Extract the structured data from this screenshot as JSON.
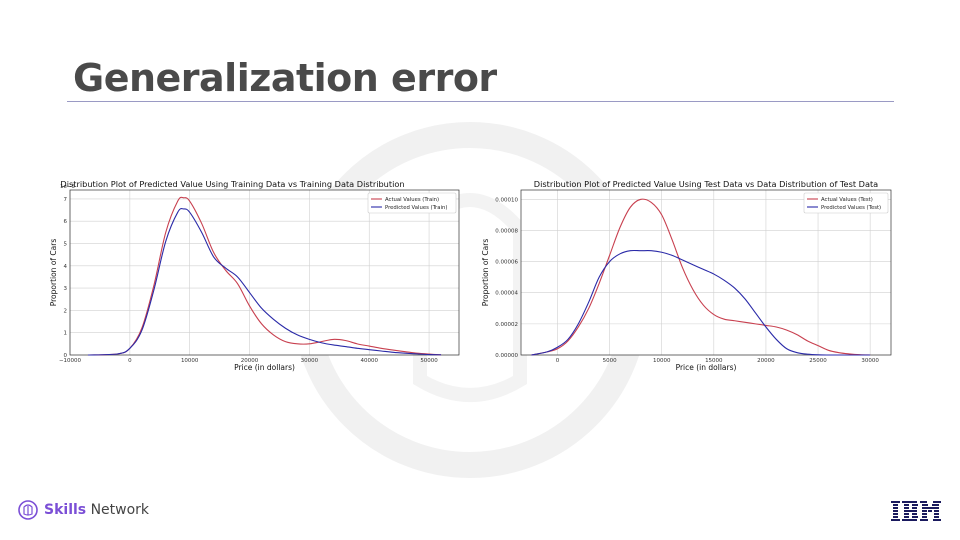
{
  "slide": {
    "title": "Generalization error"
  },
  "brand": {
    "name_strong": "Skills",
    "name_rest": "Network",
    "partner": "IBM"
  },
  "colors": {
    "actual": "#c8404f",
    "predicted": "#2a2aa8",
    "grid": "#d0d0d0",
    "axis": "#333333"
  },
  "chart_data": [
    {
      "type": "line",
      "title": "Distribution Plot of Predicted Value Using Training Data vs Training Data Distribution",
      "xlabel": "Price (in dollars)",
      "ylabel": "Proportion of Cars",
      "y_offset_label": "1e−5",
      "xlim": [
        -10000,
        55000
      ],
      "ylim": [
        0,
        7.4
      ],
      "xticks": [
        -10000,
        0,
        10000,
        20000,
        30000,
        40000,
        50000
      ],
      "xtick_labels": [
        "−10000",
        "0",
        "10000",
        "20000",
        "30000",
        "40000",
        "50000"
      ],
      "yticks": [
        0,
        1,
        2,
        3,
        4,
        5,
        6,
        7
      ],
      "ytick_labels": [
        "0",
        "1",
        "2",
        "3",
        "4",
        "5",
        "6",
        "7"
      ],
      "grid": true,
      "legend": "top-right",
      "x": [
        -7000,
        -2000,
        0,
        2000,
        4000,
        6000,
        8000,
        9000,
        10000,
        12000,
        14000,
        16000,
        18000,
        20000,
        22000,
        24000,
        26000,
        28000,
        30000,
        32000,
        34000,
        36000,
        38000,
        40000,
        42000,
        44000,
        46000,
        48000,
        50000,
        52000
      ],
      "series": [
        {
          "name": "Actual Values (Train)",
          "color": "#c8404f",
          "values": [
            0,
            0.05,
            0.3,
            1.2,
            3.1,
            5.5,
            6.9,
            7.05,
            6.9,
            5.9,
            4.6,
            3.8,
            3.2,
            2.2,
            1.4,
            0.9,
            0.6,
            0.5,
            0.5,
            0.6,
            0.7,
            0.65,
            0.5,
            0.4,
            0.3,
            0.22,
            0.15,
            0.08,
            0.04,
            0.01
          ]
        },
        {
          "name": "Predicted Values (Train)",
          "color": "#2a2aa8",
          "values": [
            0,
            0.05,
            0.3,
            1.1,
            2.9,
            5.1,
            6.4,
            6.55,
            6.4,
            5.5,
            4.4,
            3.9,
            3.5,
            2.8,
            2.1,
            1.6,
            1.2,
            0.9,
            0.7,
            0.55,
            0.45,
            0.38,
            0.3,
            0.24,
            0.18,
            0.12,
            0.08,
            0.05,
            0.02,
            0.01
          ]
        }
      ]
    },
    {
      "type": "line",
      "title": "Distribution Plot of Predicted Value Using Test Data vs Data Distribution of Test Data",
      "xlabel": "Price (in dollars)",
      "ylabel": "Proportion of Cars",
      "xlim": [
        -3500,
        32000
      ],
      "ylim": [
        0,
        0.000106
      ],
      "xticks": [
        0,
        5000,
        10000,
        15000,
        20000,
        25000,
        30000
      ],
      "xtick_labels": [
        "0",
        "5000",
        "10000",
        "15000",
        "20000",
        "25000",
        "30000"
      ],
      "yticks": [
        0,
        2e-05,
        4e-05,
        6e-05,
        8e-05,
        0.0001
      ],
      "ytick_labels": [
        "0.00000",
        "0.00002",
        "0.00004",
        "0.00006",
        "0.00008",
        "0.00010"
      ],
      "grid": true,
      "legend": "top-right",
      "x": [
        -2500,
        -1000,
        0,
        1000,
        2000,
        3000,
        4000,
        5000,
        6000,
        7000,
        8000,
        9000,
        10000,
        11000,
        12000,
        13000,
        14000,
        15000,
        16000,
        17000,
        18000,
        19000,
        20000,
        21000,
        22000,
        23000,
        24000,
        25000,
        26000,
        27000,
        28000,
        29000,
        30000
      ],
      "series": [
        {
          "name": "Actual Values (Test)",
          "color": "#c8404f",
          "values": [
            0,
            2e-06,
            4e-06,
            9e-06,
            1.8e-05,
            3e-05,
            4.6e-05,
            6.4e-05,
            8.2e-05,
            9.5e-05,
            0.0001,
            9.8e-05,
            9e-05,
            7.4e-05,
            5.6e-05,
            4.2e-05,
            3.2e-05,
            2.6e-05,
            2.3e-05,
            2.2e-05,
            2.1e-05,
            2e-05,
            1.9e-05,
            1.8e-05,
            1.6e-05,
            1.3e-05,
            9e-06,
            6e-06,
            3e-06,
            1.5e-06,
            7e-07,
            2e-07,
            0
          ]
        },
        {
          "name": "Predicted Values (Test)",
          "color": "#2a2aa8",
          "values": [
            0,
            2e-06,
            5e-06,
            1e-05,
            2e-05,
            3.4e-05,
            5e-05,
            6e-05,
            6.5e-05,
            6.7e-05,
            6.7e-05,
            6.7e-05,
            6.6e-05,
            6.4e-05,
            6.1e-05,
            5.8e-05,
            5.5e-05,
            5.2e-05,
            4.8e-05,
            4.3e-05,
            3.6e-05,
            2.7e-05,
            1.8e-05,
            1e-05,
            4e-06,
            1.5e-06,
            5e-07,
            1e-07,
            0,
            0,
            0,
            0,
            0
          ]
        }
      ]
    }
  ]
}
